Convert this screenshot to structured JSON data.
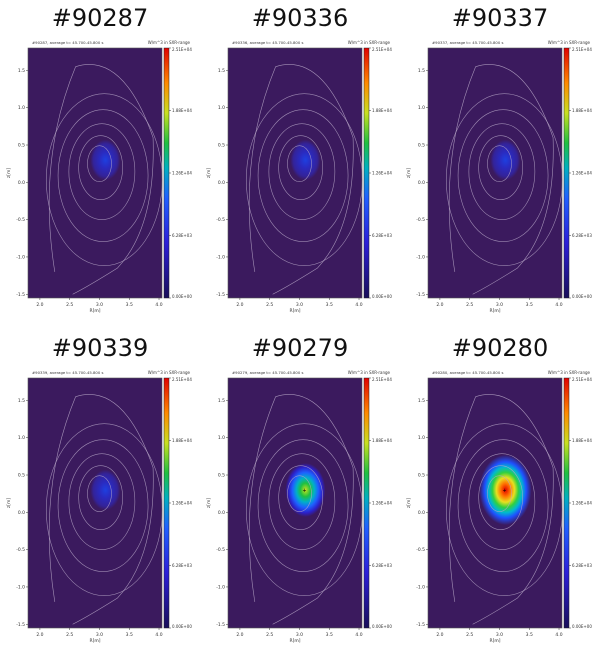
{
  "chart_data": [
    {
      "type": "heatmap",
      "title": "#90287",
      "subtitle": "#90287, average t= 45.700-45.800 s",
      "colorbar_label": "W/m^3 in SXR-range",
      "xlabel": "R[m]",
      "ylabel": "z[m]",
      "xticks": [
        "2.0",
        "2.5",
        "3.0",
        "3.5",
        "4.0"
      ],
      "yticks": [
        "1.5",
        "1.0",
        "0.5",
        "0.0",
        "-0.5",
        "-1.0",
        "-1.5"
      ],
      "colorbar_ticks": [
        "2.51E+04",
        "1.88E+04",
        "1.26E+04",
        "6.28E+03",
        "0.00E+00"
      ],
      "colorbar_range": [
        0,
        25100
      ],
      "peak_location": {
        "R": 3.1,
        "z": 0.3
      },
      "peak_level": 0.12
    },
    {
      "type": "heatmap",
      "title": "#90336",
      "subtitle": "#90336, average t= 45.700-45.800 s",
      "colorbar_label": "W/m^3 in SXR-range",
      "xlabel": "R[m]",
      "ylabel": "z[m]",
      "xticks": [
        "2.0",
        "2.5",
        "3.0",
        "3.5",
        "4.0"
      ],
      "yticks": [
        "1.5",
        "1.0",
        "0.5",
        "0.0",
        "-0.5",
        "-1.0",
        "-1.5"
      ],
      "colorbar_ticks": [
        "2.51E+04",
        "1.88E+04",
        "1.26E+04",
        "6.28E+03",
        "0.00E+00"
      ],
      "colorbar_range": [
        0,
        25100
      ],
      "peak_location": {
        "R": 3.1,
        "z": 0.3
      },
      "peak_level": 0.1
    },
    {
      "type": "heatmap",
      "title": "#90337",
      "subtitle": "#90337, average t= 45.700-45.800 s",
      "colorbar_label": "W/m^3 in SXR-range",
      "xlabel": "R[m]",
      "ylabel": "z[m]",
      "xticks": [
        "2.0",
        "2.5",
        "3.0",
        "3.5",
        "4.0"
      ],
      "yticks": [
        "1.5",
        "1.0",
        "0.5",
        "0.0",
        "-0.5",
        "-1.0",
        "-1.5"
      ],
      "colorbar_ticks": [
        "2.51E+04",
        "1.88E+04",
        "1.26E+04",
        "6.28E+03",
        "0.00E+00"
      ],
      "colorbar_range": [
        0,
        25100
      ],
      "peak_location": {
        "R": 3.1,
        "z": 0.3
      },
      "peak_level": 0.08
    },
    {
      "type": "heatmap",
      "title": "#90339",
      "subtitle": "#90339, average t= 45.700-45.800 s",
      "colorbar_label": "W/m^3 in SXR-range",
      "xlabel": "R[m]",
      "ylabel": "z[m]",
      "xticks": [
        "2.0",
        "2.5",
        "3.0",
        "3.5",
        "4.0"
      ],
      "yticks": [
        "1.5",
        "1.0",
        "0.5",
        "0.0",
        "-0.5",
        "-1.0",
        "-1.5"
      ],
      "colorbar_ticks": [
        "2.51E+04",
        "1.88E+04",
        "1.26E+04",
        "6.28E+03",
        "0.00E+00"
      ],
      "colorbar_range": [
        0,
        25100
      ],
      "peak_location": {
        "R": 3.1,
        "z": 0.3
      },
      "peak_level": 0.2
    },
    {
      "type": "heatmap",
      "title": "#90279",
      "subtitle": "#90279, average t= 45.700-45.800 s",
      "colorbar_label": "W/m^3 in SXR-range",
      "xlabel": "R[m]",
      "ylabel": "z[m]",
      "xticks": [
        "2.0",
        "2.5",
        "3.0",
        "3.5",
        "4.0"
      ],
      "yticks": [
        "1.5",
        "1.0",
        "0.5",
        "0.0",
        "-0.5",
        "-1.0",
        "-1.5"
      ],
      "colorbar_ticks": [
        "2.51E+04",
        "1.88E+04",
        "1.26E+04",
        "6.28E+03",
        "0.00E+00"
      ],
      "colorbar_range": [
        0,
        25100
      ],
      "peak_location": {
        "R": 3.1,
        "z": 0.3
      },
      "peak_level": 0.6
    },
    {
      "type": "heatmap",
      "title": "#90280",
      "subtitle": "#90280, average t= 45.700-45.800 s",
      "colorbar_label": "W/m^3 in SXR-range",
      "xlabel": "R[m]",
      "ylabel": "z[m]",
      "xticks": [
        "2.0",
        "2.5",
        "3.0",
        "3.5",
        "4.0"
      ],
      "yticks": [
        "1.5",
        "1.0",
        "0.5",
        "0.0",
        "-0.5",
        "-1.0",
        "-1.5"
      ],
      "colorbar_ticks": [
        "2.51E+04",
        "1.88E+04",
        "1.26E+04",
        "6.28E+03",
        "0.00E+00"
      ],
      "colorbar_range": [
        0,
        25100
      ],
      "peak_location": {
        "R": 3.1,
        "z": 0.3
      },
      "peak_level": 0.95
    }
  ],
  "colors": {
    "background": "#3b1a5e",
    "contour": "#b8a8c8"
  }
}
